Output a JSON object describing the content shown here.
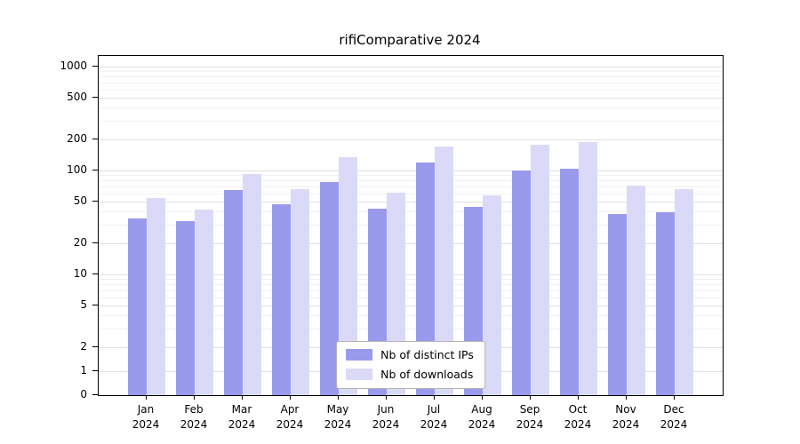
{
  "chart_data": {
    "type": "bar",
    "title": "rifiComparative 2024",
    "scale": "symlog",
    "categories": [
      "Jan",
      "Feb",
      "Mar",
      "Apr",
      "May",
      "Jun",
      "Jul",
      "Aug",
      "Sep",
      "Oct",
      "Nov",
      "Dec"
    ],
    "category_year": "2024",
    "series": [
      {
        "name": "Nb of distinct IPs",
        "color": "#9a9aec",
        "values": [
          35,
          33,
          65,
          48,
          78,
          43,
          120,
          45,
          100,
          105,
          38,
          40
        ]
      },
      {
        "name": "Nb of downloads",
        "color": "#dadaf8",
        "values": [
          55,
          42,
          93,
          66,
          135,
          62,
          170,
          58,
          178,
          188,
          72,
          66
        ]
      }
    ],
    "yticks": [
      0,
      1,
      2,
      5,
      10,
      20,
      50,
      100,
      200,
      500,
      1000
    ],
    "minor_yticks": [
      3,
      4,
      6,
      7,
      8,
      9,
      30,
      40,
      60,
      70,
      80,
      90,
      300,
      400,
      600,
      700,
      800,
      900
    ],
    "ylim": [
      0,
      1100
    ],
    "grid": true,
    "legend_position": "lower center",
    "colors": {
      "grid_major": "#e0e0e0",
      "grid_minor": "#f1f1f1",
      "axis": "#000000",
      "legend_border": "#b3b3b3",
      "background": "#ffffff"
    }
  }
}
